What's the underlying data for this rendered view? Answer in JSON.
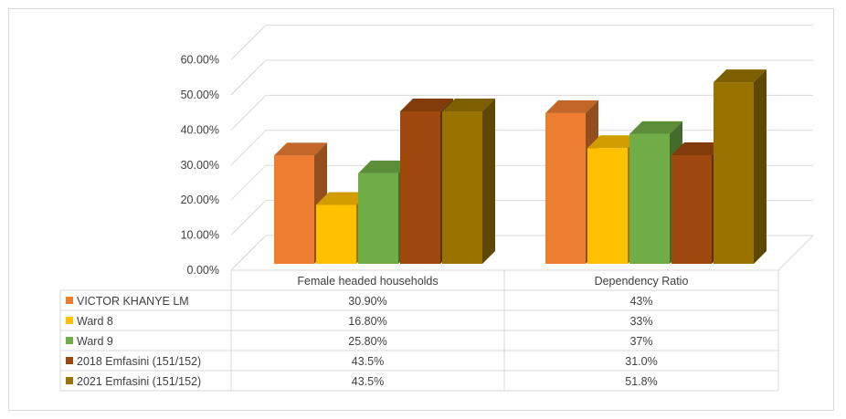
{
  "chart_data": {
    "type": "bar",
    "categories": [
      "Female headed households",
      "Dependency Ratio"
    ],
    "series": [
      {
        "name": "VICTOR KHANYE LM",
        "values": [
          30.9,
          43.0
        ],
        "labels": [
          "30.90%",
          "43%"
        ],
        "color": "#ED7D31"
      },
      {
        "name": "Ward 8",
        "values": [
          16.8,
          33.0
        ],
        "labels": [
          "16.80%",
          "33%"
        ],
        "color": "#FFC000"
      },
      {
        "name": "Ward 9",
        "values": [
          25.8,
          37.0
        ],
        "labels": [
          "25.80%",
          "37%"
        ],
        "color": "#70AD47"
      },
      {
        "name": "2018 Emfasini (151/152)",
        "values": [
          43.5,
          31.0
        ],
        "labels": [
          "43.5%",
          "31.0%"
        ],
        "color": "#9E480E"
      },
      {
        "name": "2021 Emfasini (151/152)",
        "values": [
          43.5,
          51.8
        ],
        "labels": [
          "43.5%",
          "51.8%"
        ],
        "color": "#997300"
      }
    ],
    "ylim": [
      0,
      60
    ],
    "yticks": [
      "0.00%",
      "10.00%",
      "20.00%",
      "30.00%",
      "40.00%",
      "50.00%",
      "60.00%"
    ],
    "grid": true,
    "style": "3d-clustered-column-with-data-table"
  }
}
